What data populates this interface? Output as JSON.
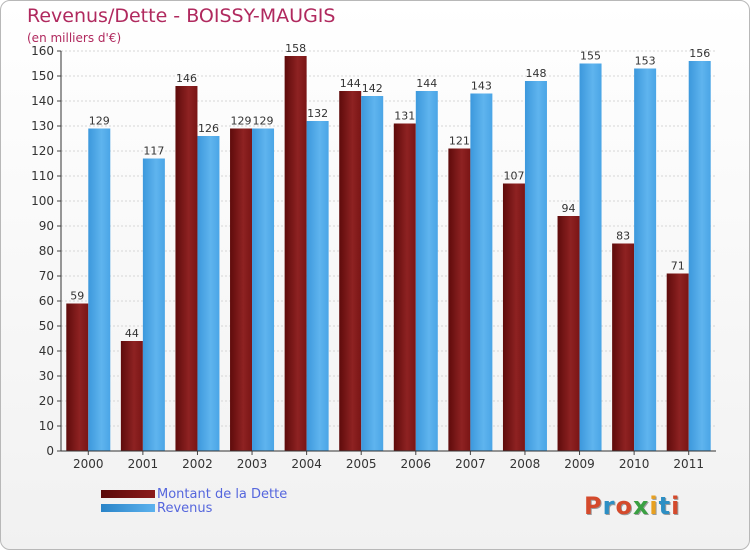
{
  "header": {
    "title": "Revenus/Dette - BOISSY-MAUGIS",
    "subtitle": "(en milliers d'€)"
  },
  "legend": {
    "debt_label": "Montant de la Dette",
    "revenue_label": "Revenus"
  },
  "logo": {
    "text": "Proxiti",
    "letter_colors": [
      "#d44a2c",
      "#2d8fc4",
      "#d44a2c",
      "#3aa042",
      "#e8a020",
      "#2d8fc4",
      "#d44a2c"
    ]
  },
  "colors": {
    "debt": "#8b1a1a",
    "revenue": "#4da6e8",
    "title": "#b0295e",
    "legend_text": "#5566dd"
  },
  "chart_data": {
    "type": "bar",
    "title": "Revenus/Dette - BOISSY-MAUGIS",
    "subtitle": "(en milliers d'€)",
    "categories": [
      "2000",
      "2001",
      "2002",
      "2003",
      "2004",
      "2005",
      "2006",
      "2007",
      "2008",
      "2009",
      "2010",
      "2011"
    ],
    "series": [
      {
        "name": "Montant de la Dette",
        "values": [
          59,
          44,
          146,
          129,
          158,
          144,
          131,
          121,
          107,
          94,
          83,
          71
        ]
      },
      {
        "name": "Revenus",
        "values": [
          129,
          117,
          126,
          129,
          132,
          142,
          144,
          143,
          148,
          155,
          153,
          156
        ]
      }
    ],
    "ylim": [
      0,
      160
    ],
    "yticks": [
      0,
      10,
      20,
      30,
      40,
      50,
      60,
      70,
      80,
      90,
      100,
      110,
      120,
      130,
      140,
      150,
      160
    ],
    "grid": true,
    "legend_position": "bottom-left"
  }
}
